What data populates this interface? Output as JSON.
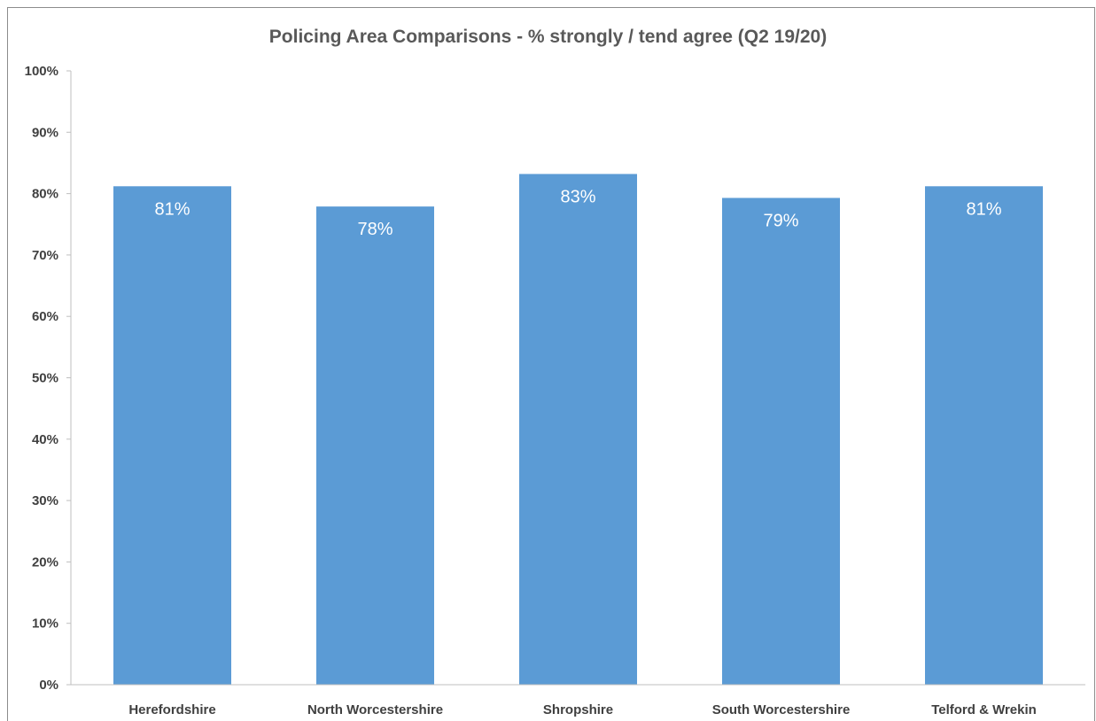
{
  "chart_data": {
    "type": "bar",
    "title": "Policing Area Comparisons - % strongly / tend agree (Q2 19/20)",
    "categories": [
      "Herefordshire",
      "North Worcestershire",
      "Shropshire",
      "South Worcestershire",
      "Telford & Wrekin"
    ],
    "values": [
      81.2,
      77.9,
      83.2,
      79.3,
      81.2
    ],
    "data_labels": [
      "81%",
      "78%",
      "83%",
      "79%",
      "81%"
    ],
    "ylim": [
      0,
      100
    ],
    "y_ticks": [
      0,
      10,
      20,
      30,
      40,
      50,
      60,
      70,
      80,
      90,
      100
    ],
    "y_tick_labels": [
      "0%",
      "10%",
      "20%",
      "30%",
      "40%",
      "50%",
      "60%",
      "70%",
      "80%",
      "90%",
      "100%"
    ],
    "xlabel": "",
    "ylabel": "",
    "grid": false,
    "legend": false,
    "bar_color": "#5b9bd5",
    "axis_color": "#bfbfbf",
    "title_color": "#595959",
    "label_color": "#404040"
  }
}
